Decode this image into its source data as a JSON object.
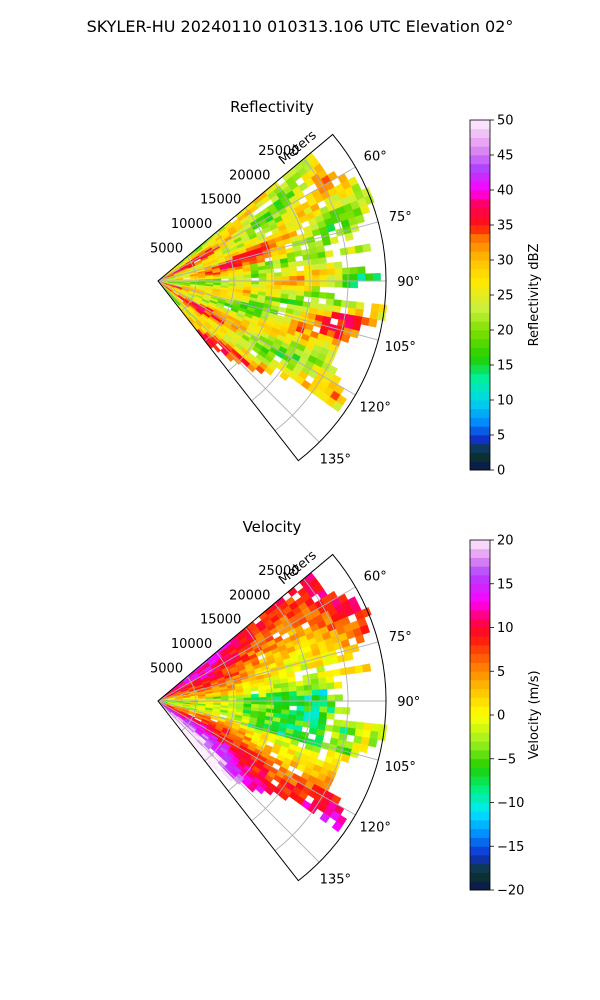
{
  "figure": {
    "suptitle": "SKYLER-HU  20240110  010313.106 UTC Elevation 02°"
  },
  "chart_data": [
    {
      "type": "heatmap",
      "projection": "polar sector (PPI)",
      "title": "Reflectivity",
      "radial_axis_label": "Meters",
      "radial_ticks": [
        5000,
        10000,
        15000,
        20000,
        25000
      ],
      "radial_tick_labels": [
        "5000",
        "10000",
        "15000",
        "20000",
        "25000"
      ],
      "radial_max": 30000,
      "azimuth_range_deg": [
        50,
        142
      ],
      "azimuth_ticks": [
        60,
        75,
        90,
        105,
        120,
        135
      ],
      "azimuth_tick_labels": [
        "60°",
        "75°",
        "90°",
        "105°",
        "120°",
        "135°"
      ],
      "grid": true,
      "colorbar": {
        "label": "Reflectivity dBZ",
        "range": [
          0,
          50
        ],
        "ticks": [
          0,
          5,
          10,
          15,
          20,
          25,
          30,
          35,
          40,
          45,
          50
        ],
        "tick_labels": [
          "0",
          "5",
          "10",
          "15",
          "20",
          "25",
          "30",
          "35",
          "40",
          "45",
          "50"
        ],
        "colorscale": [
          {
            "v": 0,
            "c": "#0a1450"
          },
          {
            "v": 2.5,
            "c": "#0d3b2a"
          },
          {
            "v": 4.5,
            "c": "#1030d0"
          },
          {
            "v": 7,
            "c": "#0090ff"
          },
          {
            "v": 10,
            "c": "#00d8e8"
          },
          {
            "v": 13,
            "c": "#00f0a0"
          },
          {
            "v": 16,
            "c": "#20d000"
          },
          {
            "v": 20,
            "c": "#80e000"
          },
          {
            "v": 23,
            "c": "#c8f040"
          },
          {
            "v": 27,
            "c": "#ffe800"
          },
          {
            "v": 30,
            "c": "#ffc000"
          },
          {
            "v": 33,
            "c": "#ff7a00"
          },
          {
            "v": 35,
            "c": "#ff1010"
          },
          {
            "v": 38,
            "c": "#ff0060"
          },
          {
            "v": 40,
            "c": "#ff00ff"
          },
          {
            "v": 43,
            "c": "#b040ff"
          },
          {
            "v": 46,
            "c": "#e090f0"
          },
          {
            "v": 50,
            "c": "#fff0ff"
          }
        ]
      }
    },
    {
      "type": "heatmap",
      "projection": "polar sector (PPI)",
      "title": "Velocity",
      "radial_axis_label": "Meters",
      "radial_ticks": [
        5000,
        10000,
        15000,
        20000,
        25000
      ],
      "radial_tick_labels": [
        "5000",
        "10000",
        "15000",
        "20000",
        "25000"
      ],
      "radial_max": 30000,
      "azimuth_range_deg": [
        50,
        142
      ],
      "azimuth_ticks": [
        60,
        75,
        90,
        105,
        120,
        135
      ],
      "azimuth_tick_labels": [
        "60°",
        "75°",
        "90°",
        "105°",
        "120°",
        "135°"
      ],
      "grid": true,
      "colorbar": {
        "label": "Velocity (m/s)",
        "range": [
          -20,
          20
        ],
        "ticks": [
          -20,
          -15,
          -10,
          -5,
          0,
          5,
          10,
          15,
          20
        ],
        "tick_labels": [
          "−20",
          "−15",
          "−10",
          "−5",
          "0",
          "5",
          "10",
          "15",
          "20"
        ],
        "colorscale": [
          {
            "v": -20,
            "c": "#0a1450"
          },
          {
            "v": -18,
            "c": "#0d3b2a"
          },
          {
            "v": -16,
            "c": "#1030d0"
          },
          {
            "v": -13.5,
            "c": "#0090ff"
          },
          {
            "v": -11,
            "c": "#00e8ff"
          },
          {
            "v": -8.5,
            "c": "#00f080"
          },
          {
            "v": -6,
            "c": "#20d000"
          },
          {
            "v": -3,
            "c": "#a0f020"
          },
          {
            "v": 0,
            "c": "#ffff00"
          },
          {
            "v": 3,
            "c": "#ffc000"
          },
          {
            "v": 6,
            "c": "#ff7000"
          },
          {
            "v": 9,
            "c": "#ff1010"
          },
          {
            "v": 11,
            "c": "#ff0060"
          },
          {
            "v": 13,
            "c": "#ff00ff"
          },
          {
            "v": 16,
            "c": "#b040ff"
          },
          {
            "v": 18,
            "c": "#e090f0"
          },
          {
            "v": 20,
            "c": "#fff0ff"
          }
        ]
      }
    }
  ]
}
